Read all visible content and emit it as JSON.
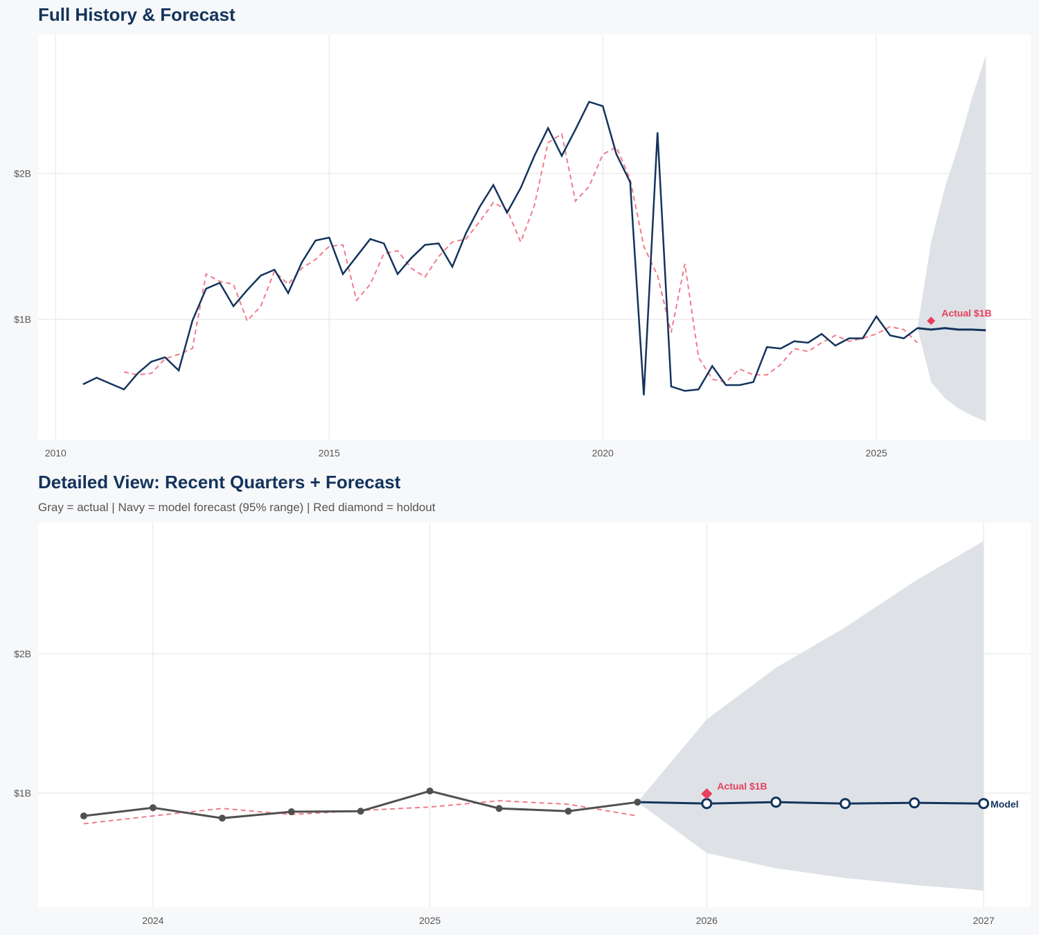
{
  "colors": {
    "background": "#f7f8fa",
    "panel": "#ffffff",
    "grid": "#e3e4e8",
    "navy": "#13335c",
    "actual_gray": "#505050",
    "fitted_red": "#f07a8c",
    "holdout_red": "#e63e5c",
    "band": "#dce0e6"
  },
  "chart_data": [
    {
      "type": "line",
      "title": "Full History & Forecast",
      "subtitle": "",
      "xlabel": "",
      "ylabel": "",
      "xlim": [
        2009.68,
        2027.82
      ],
      "ylim": [
        0.175,
        2.95
      ],
      "xticks": [
        2010,
        2015,
        2020,
        2025
      ],
      "xtick_labels": [
        "2010",
        "2015",
        "2020",
        "2025"
      ],
      "yticks": [
        1,
        2
      ],
      "ytick_labels": [
        "$1B",
        "$2B"
      ],
      "grid": true,
      "actual": {
        "x_start": 2010.5,
        "step": 0.25,
        "values": [
          0.555,
          0.6,
          0.56,
          0.52,
          0.63,
          0.71,
          0.74,
          0.65,
          0.99,
          1.21,
          1.25,
          1.09,
          1.2,
          1.3,
          1.34,
          1.18,
          1.39,
          1.54,
          1.56,
          1.31,
          1.43,
          1.55,
          1.52,
          1.31,
          1.42,
          1.51,
          1.52,
          1.36,
          1.59,
          1.77,
          1.92,
          1.73,
          1.9,
          2.12,
          2.31,
          2.12,
          2.3,
          2.49,
          2.46,
          2.13,
          1.94,
          0.48,
          2.28,
          0.54,
          0.51,
          0.52,
          0.68,
          0.55,
          0.55,
          0.57,
          0.81,
          0.8,
          0.85,
          0.84,
          0.9,
          0.82,
          0.87,
          0.87,
          1.02,
          0.89,
          0.87,
          0.94
        ]
      },
      "fitted": {
        "x_start": 2011.25,
        "step": 0.25,
        "values": [
          0.64,
          0.62,
          0.63,
          0.73,
          0.76,
          0.8,
          1.31,
          1.26,
          1.24,
          0.99,
          1.09,
          1.33,
          1.24,
          1.35,
          1.41,
          1.5,
          1.51,
          1.13,
          1.24,
          1.45,
          1.47,
          1.35,
          1.29,
          1.43,
          1.53,
          1.55,
          1.67,
          1.8,
          1.75,
          1.53,
          1.78,
          2.21,
          2.27,
          1.81,
          1.91,
          2.13,
          2.18,
          1.96,
          1.5,
          1.3,
          0.91,
          1.38,
          0.74,
          0.59,
          0.57,
          0.66,
          0.62,
          0.62,
          0.69,
          0.8,
          0.78,
          0.84,
          0.89,
          0.85,
          0.87,
          0.9,
          0.95,
          0.93,
          0.84
        ]
      },
      "forecast": {
        "x": [
          2025.75,
          2026.0,
          2026.25,
          2026.5,
          2026.75,
          2027.0
        ],
        "values": [
          0.94,
          0.93,
          0.94,
          0.93,
          0.93,
          0.925
        ],
        "upper": [
          0.94,
          1.53,
          1.9,
          2.19,
          2.52,
          2.81
        ],
        "lower": [
          0.94,
          0.57,
          0.46,
          0.39,
          0.34,
          0.3
        ]
      },
      "holdout": {
        "x": 2026.0,
        "value": 0.99,
        "label": "Actual $1B"
      },
      "series_label": ""
    },
    {
      "type": "line",
      "title": "Detailed View: Recent Quarters + Forecast",
      "subtitle": "Gray = actual  |  Navy = model forecast (95% range)  |  Red diamond = holdout",
      "xlabel": "",
      "ylabel": "",
      "xlim": [
        2023.585,
        2027.17
      ],
      "ylim": [
        0.18,
        2.94
      ],
      "xticks": [
        2024,
        2025,
        2026,
        2027
      ],
      "xtick_labels": [
        "2024",
        "2025",
        "2026",
        "2027"
      ],
      "yticks": [
        1,
        2
      ],
      "ytick_labels": [
        "$1B",
        "$2B"
      ],
      "grid": true,
      "actual": {
        "x_start": 2023.75,
        "step": 0.25,
        "values": [
          0.836,
          0.895,
          0.82,
          0.866,
          0.87,
          1.015,
          0.89,
          0.87,
          0.935
        ]
      },
      "fitted": {
        "x_start": 2023.75,
        "step": 0.25,
        "values": [
          0.78,
          0.836,
          0.89,
          0.846,
          0.875,
          0.9,
          0.945,
          0.92,
          0.836
        ]
      },
      "forecast": {
        "x": [
          2025.75,
          2026.0,
          2026.25,
          2026.5,
          2026.75,
          2027.0
        ],
        "values": [
          0.935,
          0.925,
          0.935,
          0.925,
          0.93,
          0.925
        ],
        "upper": [
          0.935,
          1.53,
          1.9,
          2.19,
          2.52,
          2.81
        ],
        "lower": [
          0.935,
          0.57,
          0.46,
          0.39,
          0.34,
          0.3
        ]
      },
      "holdout": {
        "x": 2026.0,
        "value": 0.995,
        "label": "Actual $1B"
      },
      "series_label": "Model"
    }
  ]
}
